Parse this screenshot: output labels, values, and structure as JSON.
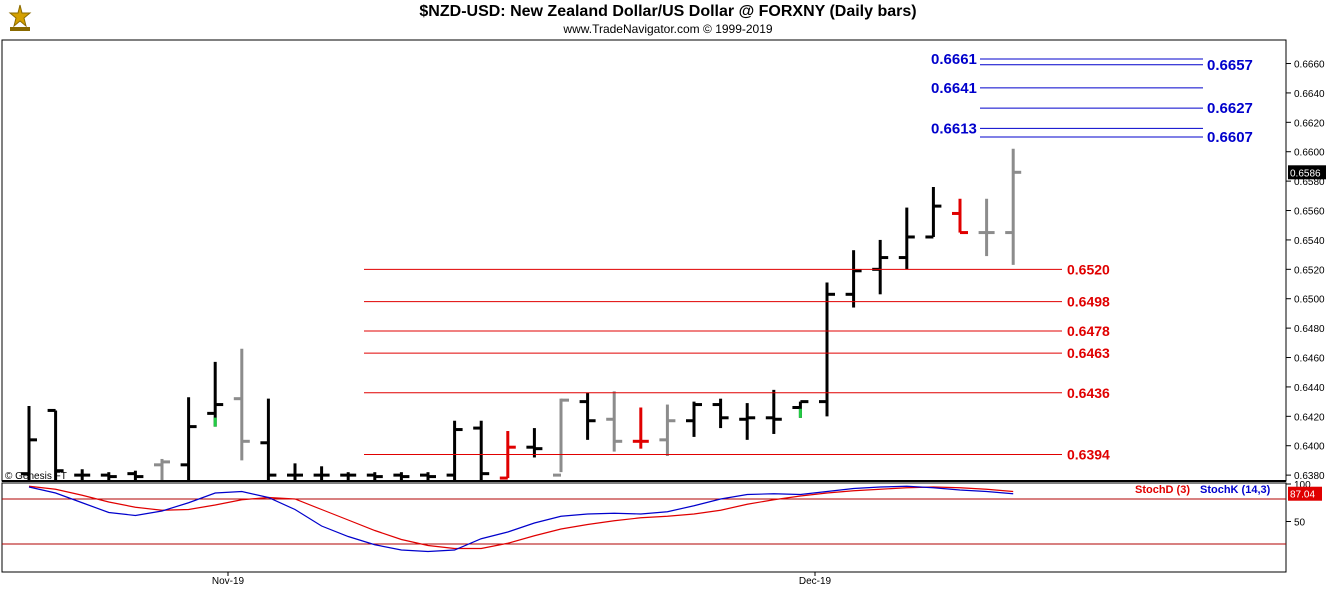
{
  "header": {
    "title": "$NZD-USD:  New Zealand Dollar/US Dollar @ FORXNY  (Daily bars)",
    "subtitle": "www.TradeNavigator.com © 1999-2019"
  },
  "colors": {
    "up_bar": "#000000",
    "gray_bar": "#8c8c8c",
    "down_bar": "#e00000",
    "support_line": "#e00000",
    "resistance_line": "#0000cc",
    "stoch_d": "#e00000",
    "stoch_k": "#0000cc",
    "low_tick": "#22cc44"
  },
  "chart_data": [
    {
      "type": "ohlc",
      "name": "$NZD-USD daily bars",
      "ylim": [
        0.6376,
        0.6676
      ],
      "yticks": [
        "0.6380",
        "0.6400",
        "0.6420",
        "0.6440",
        "0.6460",
        "0.6480",
        "0.6500",
        "0.6520",
        "0.6540",
        "0.6560",
        "0.6580",
        "0.6600",
        "0.6620",
        "0.6640",
        "0.6660"
      ],
      "last_price_label": "0.6586",
      "watermark": "© Genesis FT",
      "bars": [
        {
          "o": 0.6381,
          "h": 0.6427,
          "l": 0.6376,
          "c": 0.6404,
          "color": "up"
        },
        {
          "o": 0.6424,
          "h": 0.6424,
          "l": 0.6376,
          "c": 0.6383,
          "color": "up"
        },
        {
          "o": 0.638,
          "h": 0.6384,
          "l": 0.6376,
          "c": 0.638,
          "color": "up"
        },
        {
          "o": 0.638,
          "h": 0.6382,
          "l": 0.6376,
          "c": 0.6379,
          "color": "up"
        },
        {
          "o": 0.6381,
          "h": 0.6383,
          "l": 0.6376,
          "c": 0.6379,
          "color": "up"
        },
        {
          "o": 0.6387,
          "h": 0.6391,
          "l": 0.6376,
          "c": 0.6389,
          "color": "gray"
        },
        {
          "o": 0.6387,
          "h": 0.6433,
          "l": 0.6376,
          "c": 0.6413,
          "color": "up"
        },
        {
          "o": 0.6422,
          "h": 0.6457,
          "l": 0.6413,
          "c": 0.6428,
          "color": "up",
          "low_tick": true
        },
        {
          "o": 0.6432,
          "h": 0.6466,
          "l": 0.639,
          "c": 0.6403,
          "color": "gray"
        },
        {
          "o": 0.6402,
          "h": 0.6432,
          "l": 0.6376,
          "c": 0.638,
          "color": "up"
        },
        {
          "o": 0.638,
          "h": 0.6388,
          "l": 0.6376,
          "c": 0.638,
          "color": "up"
        },
        {
          "o": 0.638,
          "h": 0.6386,
          "l": 0.6376,
          "c": 0.638,
          "color": "up"
        },
        {
          "o": 0.638,
          "h": 0.6382,
          "l": 0.6376,
          "c": 0.638,
          "color": "up"
        },
        {
          "o": 0.638,
          "h": 0.6382,
          "l": 0.6376,
          "c": 0.6379,
          "color": "up"
        },
        {
          "o": 0.638,
          "h": 0.6382,
          "l": 0.6376,
          "c": 0.6379,
          "color": "up"
        },
        {
          "o": 0.638,
          "h": 0.6382,
          "l": 0.6376,
          "c": 0.6379,
          "color": "up"
        },
        {
          "o": 0.638,
          "h": 0.6417,
          "l": 0.6376,
          "c": 0.6411,
          "color": "up"
        },
        {
          "o": 0.6412,
          "h": 0.6417,
          "l": 0.6376,
          "c": 0.6381,
          "color": "up"
        },
        {
          "o": 0.6378,
          "h": 0.641,
          "l": 0.6378,
          "c": 0.6399,
          "color": "down"
        },
        {
          "o": 0.6399,
          "h": 0.6412,
          "l": 0.6392,
          "c": 0.6398,
          "color": "up"
        },
        {
          "o": 0.638,
          "h": 0.6432,
          "l": 0.6382,
          "c": 0.6431,
          "color": "gray"
        },
        {
          "o": 0.643,
          "h": 0.6436,
          "l": 0.6404,
          "c": 0.6417,
          "color": "up"
        },
        {
          "o": 0.6418,
          "h": 0.6437,
          "l": 0.6396,
          "c": 0.6403,
          "color": "gray"
        },
        {
          "o": 0.6403,
          "h": 0.6426,
          "l": 0.6398,
          "c": 0.6403,
          "color": "down"
        },
        {
          "o": 0.6404,
          "h": 0.6428,
          "l": 0.6393,
          "c": 0.6417,
          "color": "gray"
        },
        {
          "o": 0.6417,
          "h": 0.643,
          "l": 0.6406,
          "c": 0.6428,
          "color": "up"
        },
        {
          "o": 0.6428,
          "h": 0.6432,
          "l": 0.6412,
          "c": 0.6419,
          "color": "up"
        },
        {
          "o": 0.6418,
          "h": 0.6429,
          "l": 0.6404,
          "c": 0.6419,
          "color": "up"
        },
        {
          "o": 0.6419,
          "h": 0.6438,
          "l": 0.6408,
          "c": 0.6418,
          "color": "up"
        },
        {
          "o": 0.6426,
          "h": 0.643,
          "l": 0.6419,
          "c": 0.643,
          "color": "up",
          "low_tick": true
        },
        {
          "o": 0.643,
          "h": 0.6511,
          "l": 0.642,
          "c": 0.6503,
          "color": "up"
        },
        {
          "o": 0.6503,
          "h": 0.6533,
          "l": 0.6494,
          "c": 0.6519,
          "color": "up"
        },
        {
          "o": 0.652,
          "h": 0.654,
          "l": 0.6503,
          "c": 0.6528,
          "color": "up"
        },
        {
          "o": 0.6528,
          "h": 0.6562,
          "l": 0.652,
          "c": 0.6542,
          "color": "up"
        },
        {
          "o": 0.6542,
          "h": 0.6576,
          "l": 0.6542,
          "c": 0.6563,
          "color": "up"
        },
        {
          "o": 0.6558,
          "h": 0.6568,
          "l": 0.6545,
          "c": 0.6545,
          "color": "down"
        },
        {
          "o": 0.6545,
          "h": 0.6568,
          "l": 0.6529,
          "c": 0.6545,
          "color": "gray"
        },
        {
          "o": 0.6545,
          "h": 0.6602,
          "l": 0.6523,
          "c": 0.6586,
          "color": "gray"
        }
      ],
      "support_levels": [
        "0.6520",
        "0.6498",
        "0.6478",
        "0.6463",
        "0.6436",
        "0.6394"
      ],
      "resistance_levels_left": [
        "0.6661",
        "0.6641",
        "0.6613"
      ],
      "resistance_levels_right": [
        "0.6657",
        "0.6627",
        "0.6607"
      ]
    },
    {
      "type": "line",
      "name": "Stochastic",
      "ylim": [
        0,
        100
      ],
      "yticks": [
        "50",
        "100"
      ],
      "last_value_label": "87.04",
      "series": [
        {
          "name": "StochD (3)",
          "values": [
            97,
            93,
            85,
            76,
            69,
            65,
            66,
            72,
            79,
            82,
            80,
            66,
            52,
            38,
            26,
            18,
            14,
            14,
            21,
            31,
            40,
            46,
            51,
            55,
            57,
            60,
            65,
            73,
            79,
            84,
            88,
            91,
            93,
            95,
            96,
            95,
            93,
            90
          ]
        },
        {
          "name": "StochK (14,3)",
          "values": [
            96,
            88,
            75,
            62,
            58,
            64,
            75,
            88,
            90,
            82,
            66,
            44,
            30,
            19,
            12,
            10,
            12,
            27,
            36,
            48,
            57,
            60,
            61,
            60,
            63,
            71,
            80,
            86,
            87,
            86,
            90,
            94,
            96,
            97,
            95,
            92,
            90,
            87
          ]
        }
      ]
    }
  ],
  "x_axis": {
    "labels": [
      "Nov-19",
      "Dec-19"
    ]
  }
}
